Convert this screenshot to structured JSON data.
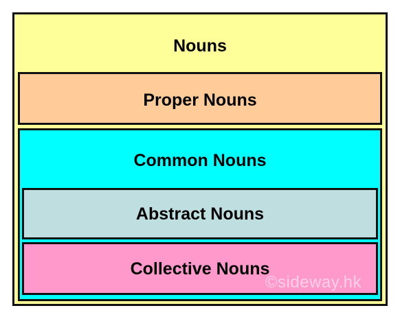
{
  "nouns": {
    "label": "Nouns",
    "color": "#ffff99"
  },
  "proper_nouns": {
    "label": "Proper Nouns",
    "color": "#ffcc99"
  },
  "common_nouns": {
    "label": "Common Nouns",
    "color": "#00ffff",
    "children": {
      "abstract_nouns": {
        "label": "Abstract Nouns",
        "color": "#bfdee0"
      },
      "collective_nouns": {
        "label": "Collective Nouns",
        "color": "#ff99cc"
      }
    }
  },
  "watermark": "©sideway.hk"
}
